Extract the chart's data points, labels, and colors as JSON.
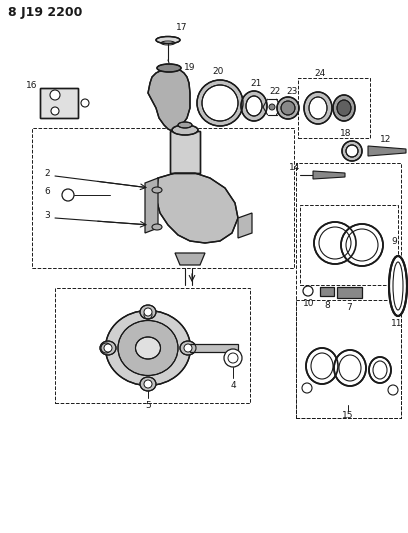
{
  "title": "8 J19 2200",
  "bg_color": "#ffffff",
  "line_color": "#1a1a1a",
  "title_fontsize": 9,
  "label_fontsize": 6.5,
  "fig_width": 4.08,
  "fig_height": 5.33,
  "dpi": 100
}
